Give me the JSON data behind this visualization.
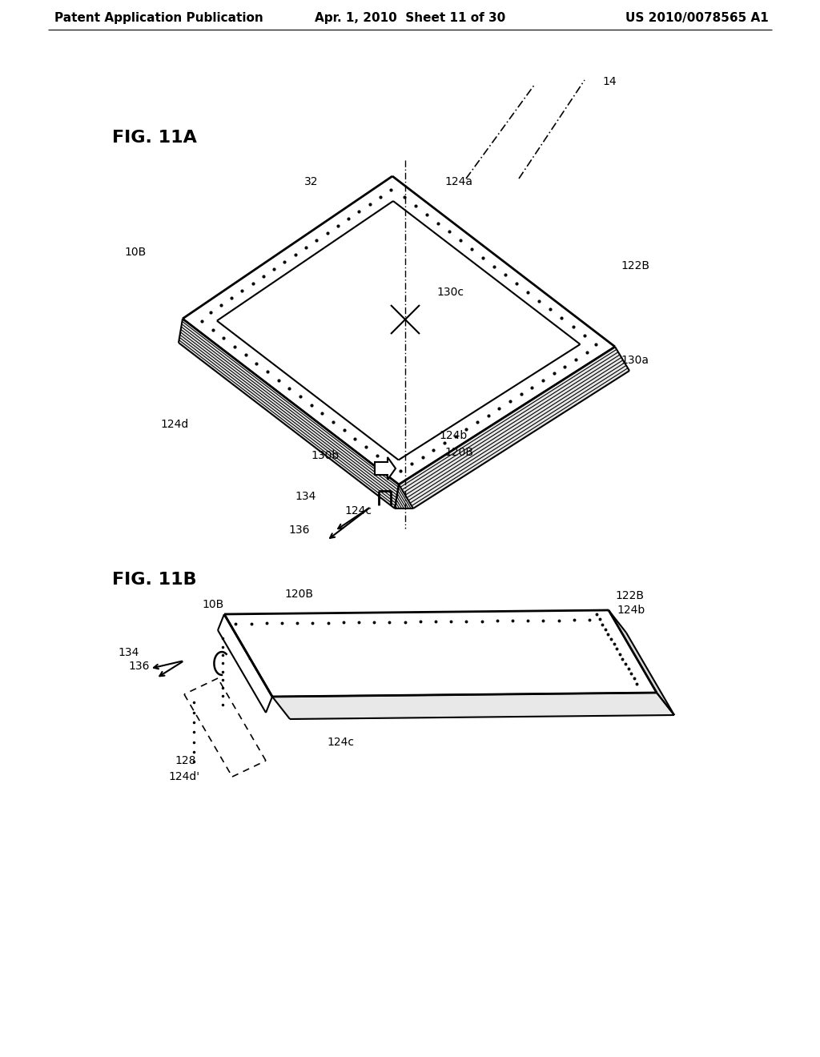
{
  "background_color": "#ffffff",
  "header_left": "Patent Application Publication",
  "header_mid": "Apr. 1, 2010  Sheet 11 of 30",
  "header_right": "US 2010/0078565 A1",
  "fig_label_A": "FIG. 11A",
  "fig_label_B": "FIG. 11B",
  "line_color": "#000000",
  "text_color": "#000000",
  "font_size_header": 11,
  "font_size_label": 16,
  "font_size_annotation": 10
}
